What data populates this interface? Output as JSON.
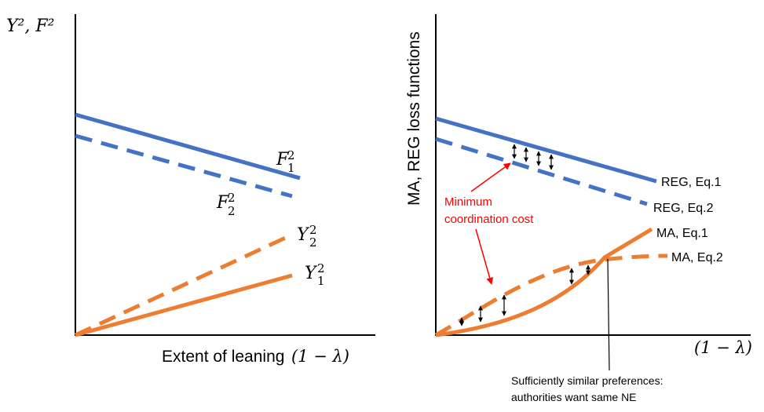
{
  "left_panel": {
    "y_axis_label": "Y², F²",
    "x_axis_label": "Extent of leaning",
    "x_axis_math": "(1 − λ)",
    "curves": [
      {
        "id": "F1",
        "base": "F",
        "sub": "1",
        "sup": "2",
        "color": "#4472C4",
        "style": "solid"
      },
      {
        "id": "F2",
        "base": "F",
        "sub": "2",
        "sup": "2",
        "color": "#4472C4",
        "style": "dashed"
      },
      {
        "id": "Y2",
        "base": "Y",
        "sub": "2",
        "sup": "2",
        "color": "#ED7D31",
        "style": "dashed"
      },
      {
        "id": "Y1",
        "base": "Y",
        "sub": "1",
        "sup": "2",
        "color": "#ED7D31",
        "style": "solid"
      }
    ]
  },
  "right_panel": {
    "y_axis_label": "MA, REG loss functions",
    "x_axis_math": "(1 − λ)",
    "series_labels": {
      "reg_eq1": "REG, Eq.1",
      "reg_eq2": "REG, Eq.2",
      "ma_eq1": "MA, Eq.1",
      "ma_eq2": "MA, Eq.2"
    },
    "annotation_red_line1": "Minimum",
    "annotation_red_line2": "coordination cost",
    "annotation_bottom_line1": "Sufficiently similar preferences:",
    "annotation_bottom_line2": "authorities want same NE"
  },
  "colors": {
    "blue": "#4472C4",
    "orange": "#ED7D31",
    "red": "#FF0000",
    "axis": "#000000"
  }
}
